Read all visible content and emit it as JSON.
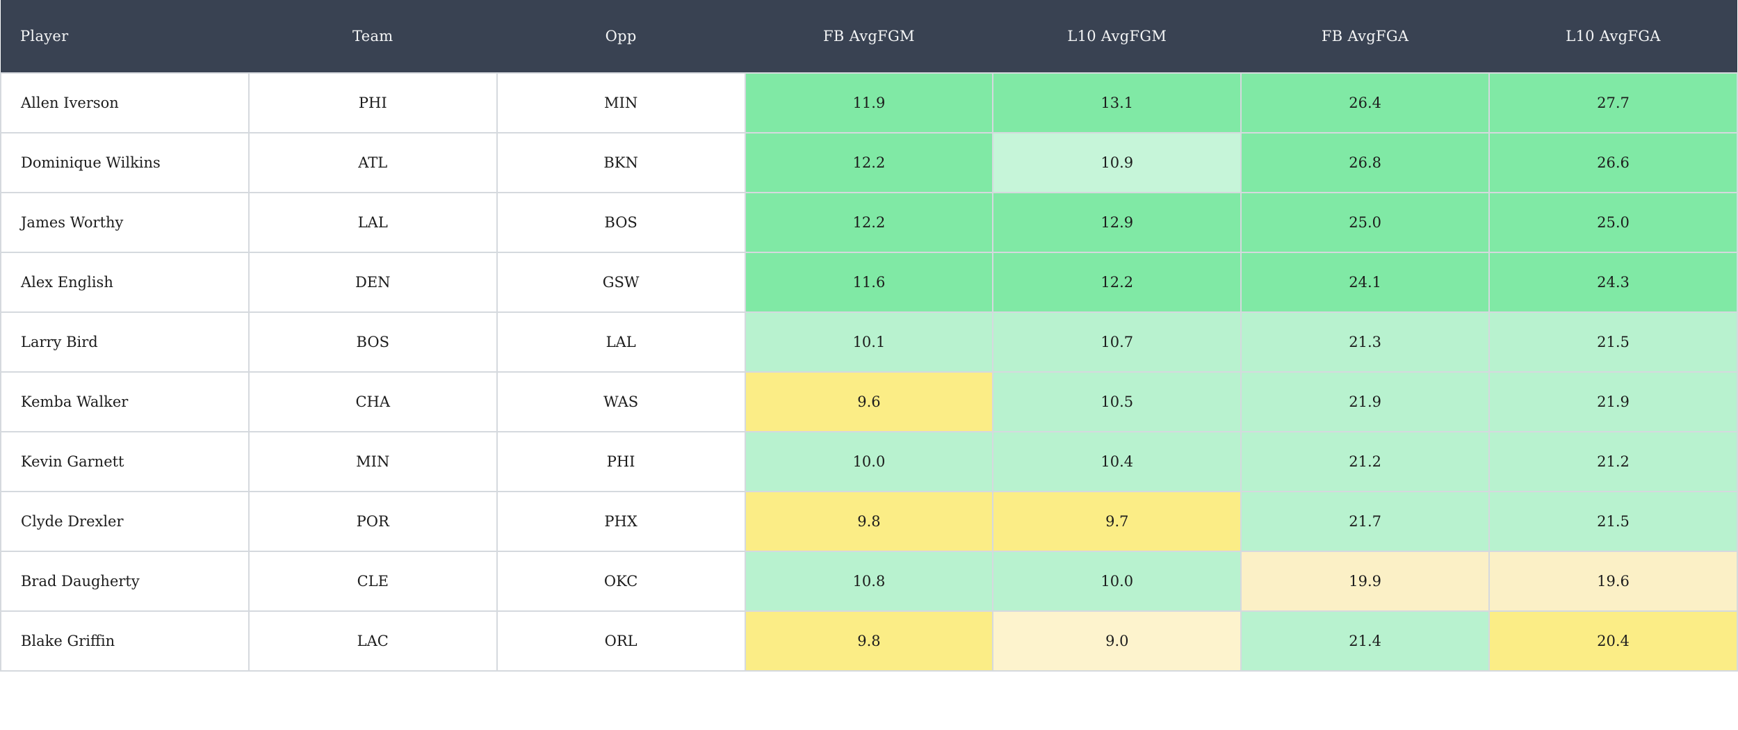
{
  "palette": {
    "header_bg": "#394252",
    "header_text": "#f4f5f6",
    "row_bg": "#ffffff",
    "border": "#d5d9de",
    "text": "#1c1c1c",
    "green": "#80e9a5",
    "light_green": "#b8f2cf",
    "lighter_green": "#c6f5d9",
    "yellow": "#fbed86",
    "cream": "#fbf0c6",
    "light_cream": "#fdf3cd"
  },
  "table": {
    "columns": [
      {
        "key": "player",
        "label": "Player",
        "align": "left"
      },
      {
        "key": "team",
        "label": "Team",
        "align": "center"
      },
      {
        "key": "opp",
        "label": "Opp",
        "align": "center"
      },
      {
        "key": "fb_avgfgm",
        "label": "FB AvgFGM",
        "align": "center"
      },
      {
        "key": "l10_avgfgm",
        "label": "L10 AvgFGM",
        "align": "center"
      },
      {
        "key": "fb_avgfga",
        "label": "FB AvgFGA",
        "align": "center"
      },
      {
        "key": "l10_avgfga",
        "label": "L10 AvgFGA",
        "align": "center"
      }
    ],
    "rows": [
      {
        "player": "Allen Iverson",
        "team": "PHI",
        "opp": "MIN",
        "stats": [
          {
            "v": "11.9",
            "c": "green"
          },
          {
            "v": "13.1",
            "c": "green"
          },
          {
            "v": "26.4",
            "c": "green"
          },
          {
            "v": "27.7",
            "c": "green"
          }
        ]
      },
      {
        "player": "Dominique Wilkins",
        "team": "ATL",
        "opp": "BKN",
        "stats": [
          {
            "v": "12.2",
            "c": "green"
          },
          {
            "v": "10.9",
            "c": "lighter_green"
          },
          {
            "v": "26.8",
            "c": "green"
          },
          {
            "v": "26.6",
            "c": "green"
          }
        ]
      },
      {
        "player": "James Worthy",
        "team": "LAL",
        "opp": "BOS",
        "stats": [
          {
            "v": "12.2",
            "c": "green"
          },
          {
            "v": "12.9",
            "c": "green"
          },
          {
            "v": "25.0",
            "c": "green"
          },
          {
            "v": "25.0",
            "c": "green"
          }
        ]
      },
      {
        "player": "Alex English",
        "team": "DEN",
        "opp": "GSW",
        "stats": [
          {
            "v": "11.6",
            "c": "green"
          },
          {
            "v": "12.2",
            "c": "green"
          },
          {
            "v": "24.1",
            "c": "green"
          },
          {
            "v": "24.3",
            "c": "green"
          }
        ]
      },
      {
        "player": "Larry Bird",
        "team": "BOS",
        "opp": "LAL",
        "stats": [
          {
            "v": "10.1",
            "c": "light_green"
          },
          {
            "v": "10.7",
            "c": "light_green"
          },
          {
            "v": "21.3",
            "c": "light_green"
          },
          {
            "v": "21.5",
            "c": "light_green"
          }
        ]
      },
      {
        "player": "Kemba Walker",
        "team": "CHA",
        "opp": "WAS",
        "stats": [
          {
            "v": "9.6",
            "c": "yellow"
          },
          {
            "v": "10.5",
            "c": "light_green"
          },
          {
            "v": "21.9",
            "c": "light_green"
          },
          {
            "v": "21.9",
            "c": "light_green"
          }
        ]
      },
      {
        "player": "Kevin Garnett",
        "team": "MIN",
        "opp": "PHI",
        "stats": [
          {
            "v": "10.0",
            "c": "light_green"
          },
          {
            "v": "10.4",
            "c": "light_green"
          },
          {
            "v": "21.2",
            "c": "light_green"
          },
          {
            "v": "21.2",
            "c": "light_green"
          }
        ]
      },
      {
        "player": "Clyde Drexler",
        "team": "POR",
        "opp": "PHX",
        "stats": [
          {
            "v": "9.8",
            "c": "yellow"
          },
          {
            "v": "9.7",
            "c": "yellow"
          },
          {
            "v": "21.7",
            "c": "light_green"
          },
          {
            "v": "21.5",
            "c": "light_green"
          }
        ]
      },
      {
        "player": "Brad Daugherty",
        "team": "CLE",
        "opp": "OKC",
        "stats": [
          {
            "v": "10.8",
            "c": "light_green"
          },
          {
            "v": "10.0",
            "c": "light_green"
          },
          {
            "v": "19.9",
            "c": "cream"
          },
          {
            "v": "19.6",
            "c": "cream"
          }
        ]
      },
      {
        "player": "Blake Griffin",
        "team": "LAC",
        "opp": "ORL",
        "stats": [
          {
            "v": "9.8",
            "c": "yellow"
          },
          {
            "v": "9.0",
            "c": "light_cream"
          },
          {
            "v": "21.4",
            "c": "light_green"
          },
          {
            "v": "20.4",
            "c": "yellow"
          }
        ]
      }
    ]
  }
}
